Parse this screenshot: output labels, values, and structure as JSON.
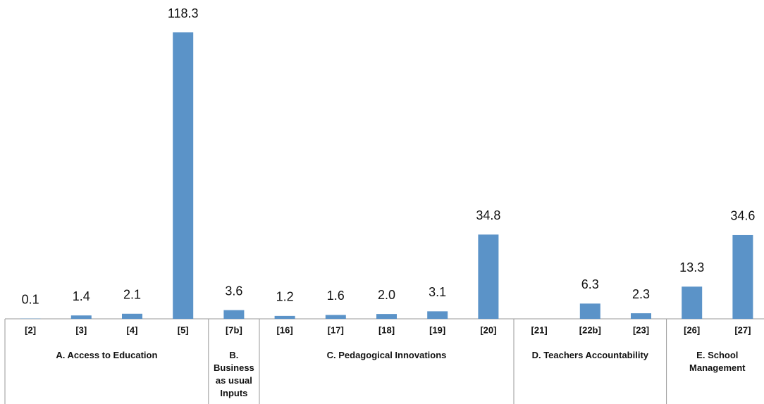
{
  "chart_data": {
    "type": "bar",
    "categories": [
      "[2]",
      "[3]",
      "[4]",
      "[5]",
      "[7b]",
      "[16]",
      "[17]",
      "[18]",
      "[19]",
      "[20]",
      "[21]",
      "[22b]",
      "[23]",
      "[26]",
      "[27]"
    ],
    "values": [
      0.1,
      1.4,
      2.1,
      118.3,
      3.6,
      1.2,
      1.6,
      2,
      3.1,
      34.8,
      null,
      6.3,
      2.3,
      13.3,
      34.6
    ],
    "value_labels": [
      "0.1",
      "1.4",
      "2.1",
      "118.3",
      "3.6",
      "1.2",
      "1.6",
      "2.0",
      "3.1",
      "34.8",
      null,
      "6.3",
      "2.3",
      "13.3",
      "34.6"
    ],
    "groups": [
      {
        "label": "A. Access to Education",
        "count": 4
      },
      {
        "label": "B. Business as usual Inputs",
        "count": 1
      },
      {
        "label": "C. Pedagogical Innovations",
        "count": 5
      },
      {
        "label": "D. Teachers Accountability",
        "count": 3
      },
      {
        "label": "E. School Management",
        "count": 2
      }
    ],
    "color": "#5b93c8"
  }
}
